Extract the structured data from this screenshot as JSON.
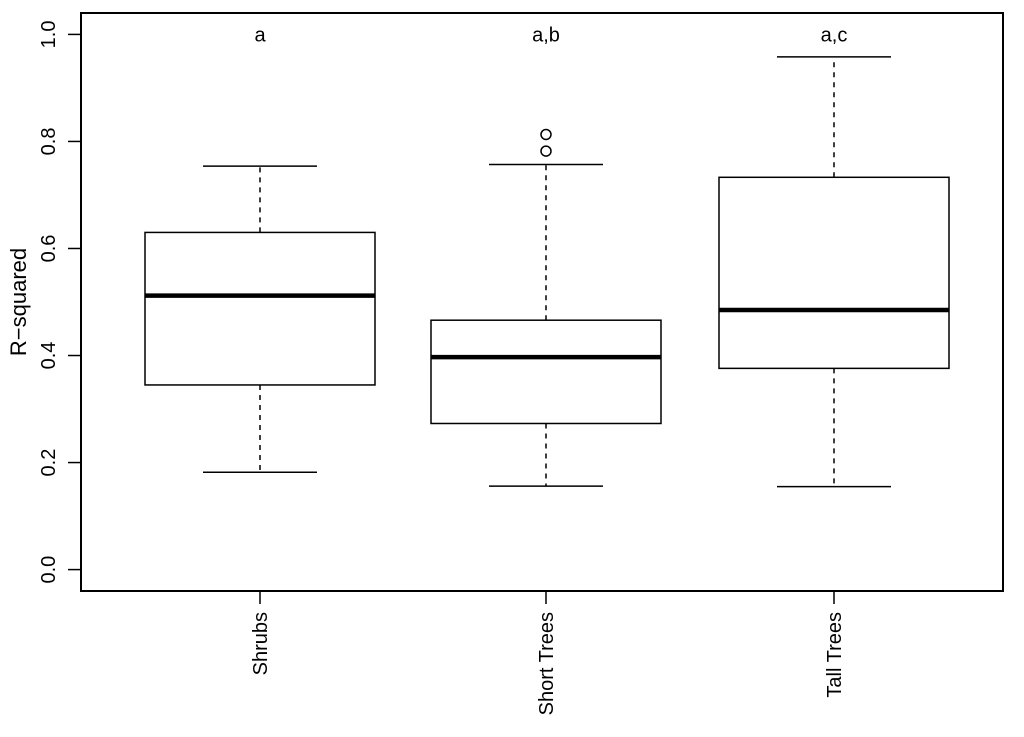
{
  "chart_data": {
    "type": "boxplot",
    "title": "",
    "xlabel": "",
    "ylabel": "R−squared",
    "ylim": [
      -0.04,
      1.04
    ],
    "yticks": [
      "0.0",
      "0.2",
      "0.4",
      "0.6",
      "0.8",
      "1.0"
    ],
    "ytick_values": [
      0.0,
      0.2,
      0.4,
      0.6,
      0.8,
      1.0
    ],
    "grid": false,
    "legend": "none",
    "categories": [
      "Shrubs",
      "Short Trees",
      "Tall Trees"
    ],
    "boxes": [
      {
        "category": "Shrubs",
        "whisker_low": 0.182,
        "q1": 0.345,
        "median": 0.512,
        "q3": 0.63,
        "whisker_high": 0.754,
        "outliers": [],
        "annotation": "a"
      },
      {
        "category": "Short Trees",
        "whisker_low": 0.156,
        "q1": 0.273,
        "median": 0.397,
        "q3": 0.466,
        "whisker_high": 0.757,
        "outliers": [
          0.782,
          0.813
        ],
        "annotation": "a,b"
      },
      {
        "category": "Tall Trees",
        "whisker_low": 0.155,
        "q1": 0.376,
        "median": 0.485,
        "q3": 0.733,
        "whisker_high": 0.958,
        "outliers": [],
        "annotation": "a,c"
      }
    ],
    "annotation_y": 1.0
  }
}
